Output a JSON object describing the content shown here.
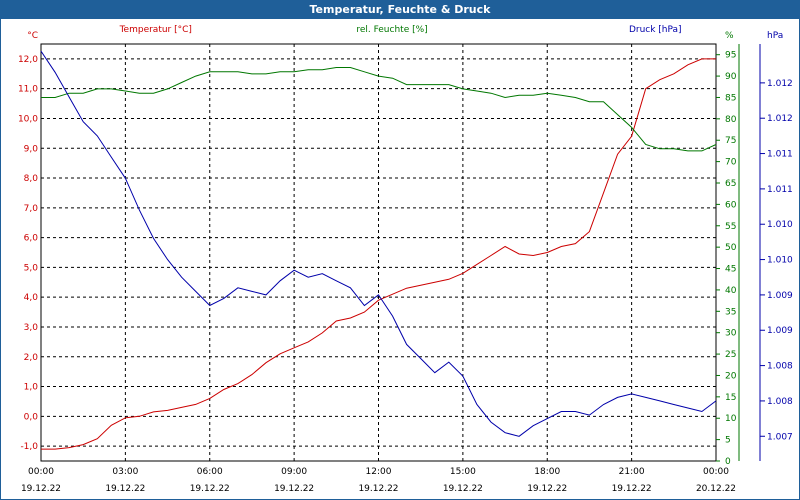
{
  "window": {
    "title": "Temperatur, Feuchte & Druck"
  },
  "colors": {
    "temperature": "#cc0000",
    "humidity": "#007700",
    "pressure": "#0000aa",
    "title_bg": "#1f5f99"
  },
  "chart_data": {
    "type": "line",
    "title": "Temperatur, Feuchte & Druck",
    "grid": true,
    "x_ticks": [
      {
        "time": "00:00",
        "date": "19.12.22"
      },
      {
        "time": "03:00",
        "date": "19.12.22"
      },
      {
        "time": "06:00",
        "date": "19.12.22"
      },
      {
        "time": "09:00",
        "date": "19.12.22"
      },
      {
        "time": "12:00",
        "date": "19.12.22"
      },
      {
        "time": "15:00",
        "date": "19.12.22"
      },
      {
        "time": "18:00",
        "date": "19.12.22"
      },
      {
        "time": "21:00",
        "date": "19.12.22"
      },
      {
        "time": "00:00",
        "date": "20.12.22"
      }
    ],
    "x_range_hours": [
      0,
      24
    ],
    "axes": {
      "temperature": {
        "label": "Temperatur [°C]",
        "unit": "°C",
        "range": [
          -1.5,
          12.5
        ],
        "ticks": [
          "-1,0",
          "0,0",
          "1,0",
          "2,0",
          "3,0",
          "4,0",
          "5,0",
          "6,0",
          "7,0",
          "8,0",
          "9,0",
          "10,0",
          "11,0",
          "12,0"
        ]
      },
      "humidity": {
        "label": "rel. Feuchte [%]",
        "unit": "%",
        "range": [
          0,
          97.5
        ],
        "ticks": [
          "0",
          "5",
          "10",
          "15",
          "20",
          "25",
          "30",
          "35",
          "40",
          "45",
          "50",
          "55",
          "60",
          "65",
          "70",
          "75",
          "80",
          "85",
          "90",
          "95"
        ]
      },
      "pressure": {
        "label": "Druck [hPa]",
        "unit": "hPa",
        "range": [
          1006.65,
          1012.55
        ],
        "ticks": [
          "1.007",
          "1.008",
          "1.008",
          "1.009",
          "1.009",
          "1.010",
          "1.010",
          "1.011",
          "1.011",
          "1.012",
          "1.012"
        ]
      }
    },
    "series": [
      {
        "name": "Temperatur [°C]",
        "axis": "temperature",
        "x": [
          0,
          0.5,
          1,
          1.5,
          2,
          2.5,
          3,
          3.5,
          4,
          4.5,
          5,
          5.5,
          6,
          6.5,
          7,
          7.5,
          8,
          8.5,
          9,
          9.5,
          10,
          10.5,
          11,
          11.5,
          12,
          12.5,
          13,
          13.5,
          14,
          14.5,
          15,
          15.5,
          16,
          16.5,
          17,
          17.5,
          18,
          18.5,
          19,
          19.5,
          20,
          20.5,
          21,
          21.5,
          22,
          22.5,
          23,
          23.5,
          24
        ],
        "values": [
          -1.1,
          -1.1,
          -1.05,
          -0.95,
          -0.75,
          -0.3,
          -0.05,
          0,
          0.15,
          0.2,
          0.3,
          0.4,
          0.6,
          0.9,
          1.1,
          1.4,
          1.8,
          2.1,
          2.3,
          2.5,
          2.8,
          3.2,
          3.3,
          3.5,
          3.9,
          4.1,
          4.3,
          4.4,
          4.5,
          4.6,
          4.8,
          5.1,
          5.4,
          5.7,
          5.45,
          5.4,
          5.5,
          5.7,
          5.8,
          6.2,
          7.5,
          8.8,
          9.4,
          11.0,
          11.3,
          11.5,
          11.8,
          12.0,
          12.0
        ]
      },
      {
        "name": "rel. Feuchte [%]",
        "axis": "humidity",
        "x": [
          0,
          0.5,
          1,
          1.5,
          2,
          2.5,
          3,
          3.5,
          4,
          4.5,
          5,
          5.5,
          6,
          6.5,
          7,
          7.5,
          8,
          8.5,
          9,
          9.5,
          10,
          10.5,
          11,
          11.5,
          12,
          12.5,
          13,
          13.5,
          14,
          14.5,
          15,
          15.5,
          16,
          16.5,
          17,
          17.5,
          18,
          18.5,
          19,
          19.5,
          20,
          20.5,
          21,
          21.5,
          22,
          22.5,
          23,
          23.5,
          24
        ],
        "values": [
          85,
          85,
          86,
          86,
          87,
          87,
          86.5,
          86,
          86,
          87,
          88.5,
          90,
          91,
          91,
          91,
          90.5,
          90.5,
          91,
          91,
          91.5,
          91.5,
          92,
          92,
          91,
          90,
          89.5,
          88,
          88,
          88,
          88,
          87,
          86.5,
          86,
          85,
          85.5,
          85.5,
          86,
          85.5,
          85,
          84,
          84,
          81,
          78,
          74,
          73,
          73,
          72.5,
          72.5,
          74
        ]
      },
      {
        "name": "Druck [hPa]",
        "axis": "pressure",
        "x": [
          0,
          0.5,
          1,
          1.5,
          2,
          2.5,
          3,
          3.5,
          4,
          4.5,
          5,
          5.5,
          6,
          6.5,
          7,
          7.5,
          8,
          8.5,
          9,
          9.5,
          10,
          10.5,
          11,
          11.5,
          12,
          12.5,
          13,
          13.5,
          14,
          14.5,
          15,
          15.5,
          16,
          16.5,
          17,
          17.5,
          18,
          18.5,
          19,
          19.5,
          20,
          20.5,
          21,
          21.5,
          22,
          22.5,
          23,
          23.5,
          24
        ],
        "values": [
          1012.45,
          1012.15,
          1011.8,
          1011.45,
          1011.25,
          1010.95,
          1010.65,
          1010.2,
          1009.8,
          1009.5,
          1009.25,
          1009.05,
          1008.85,
          1008.95,
          1009.1,
          1009.05,
          1009.0,
          1009.2,
          1009.35,
          1009.25,
          1009.3,
          1009.2,
          1009.1,
          1008.85,
          1009.0,
          1008.7,
          1008.3,
          1008.1,
          1007.9,
          1008.05,
          1007.85,
          1007.45,
          1007.2,
          1007.05,
          1007.0,
          1007.15,
          1007.25,
          1007.35,
          1007.35,
          1007.3,
          1007.45,
          1007.55,
          1007.6,
          1007.55,
          1007.5,
          1007.45,
          1007.4,
          1007.35,
          1007.5
        ]
      }
    ]
  }
}
